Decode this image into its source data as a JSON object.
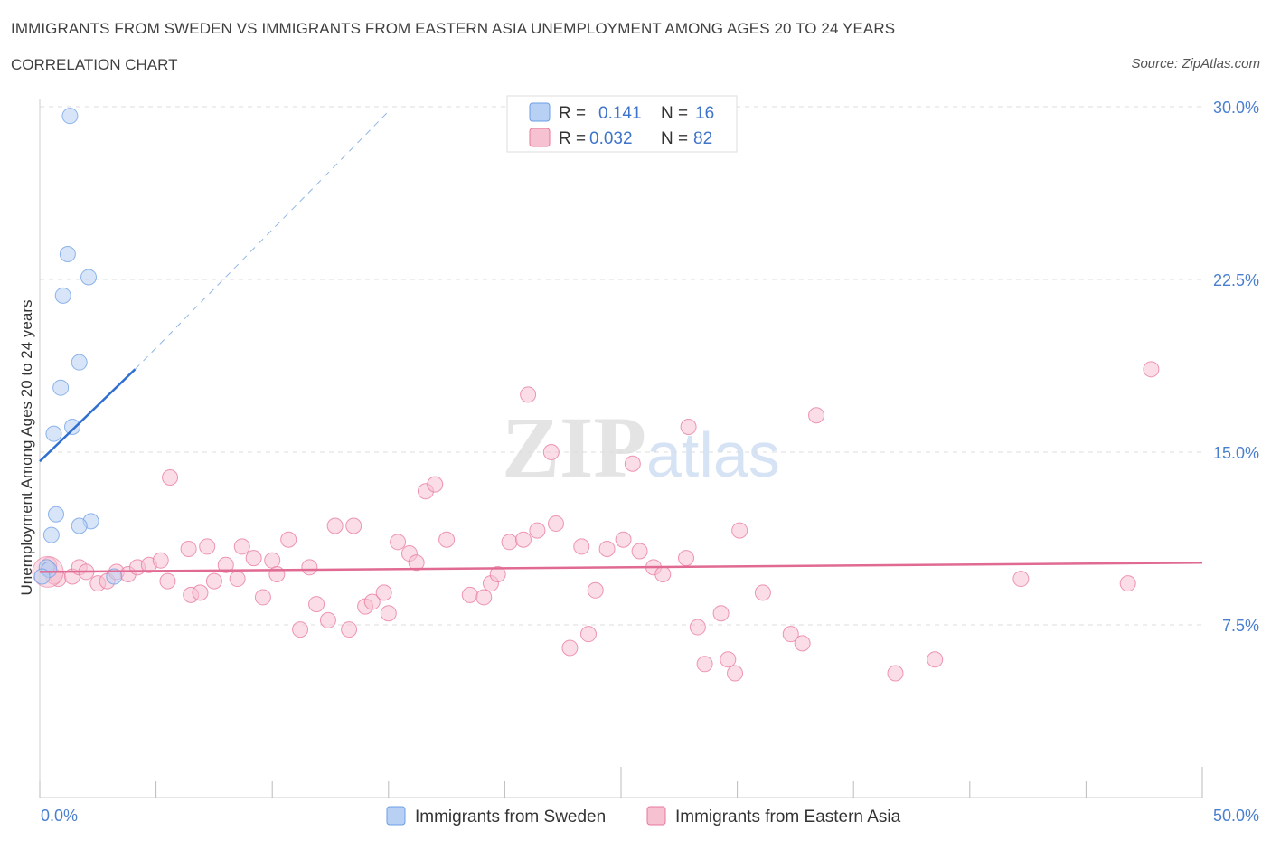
{
  "title": "IMMIGRANTS FROM SWEDEN VS IMMIGRANTS FROM EASTERN ASIA UNEMPLOYMENT AMONG AGES 20 TO 24 YEARS",
  "subtitle": "CORRELATION CHART",
  "source": "Source: ZipAtlas.com",
  "watermark": {
    "zip": "ZIP",
    "atlas": "atlas"
  },
  "colors": {
    "sweden": "#6b9ee6",
    "sweden_fill": "#b8d0f3",
    "eastasia": "#e8779b",
    "eastasia_fill": "#f6c1d1",
    "tick_text": "#4a7fcf",
    "grid": "#dcdcdc"
  },
  "chart_data": {
    "type": "scatter",
    "title": "IMMIGRANTS FROM SWEDEN VS IMMIGRANTS FROM EASTERN ASIA UNEMPLOYMENT AMONG AGES 20 TO 24 YEARS",
    "xlabel": "",
    "ylabel": "Unemployment Among Ages 20 to 24 years",
    "xlim": [
      0,
      50
    ],
    "ylim": [
      0,
      30
    ],
    "x_tick_labels": [
      "0.0%",
      "50.0%"
    ],
    "y_ticks": [
      7.5,
      15.0,
      22.5,
      30.0
    ],
    "y_tick_labels": [
      "7.5%",
      "15.0%",
      "22.5%",
      "30.0%"
    ],
    "legend": [
      {
        "key": "sweden",
        "r_label": "R =",
        "r_value": "0.141",
        "n_label": "N =",
        "n_value": "16"
      },
      {
        "key": "eastasia",
        "r_label": "R =",
        "r_value": "0.032",
        "n_label": "N =",
        "n_value": "82"
      }
    ],
    "series": [
      {
        "key": "sweden",
        "name": "Immigrants from Sweden",
        "trend": {
          "x0": 0.0,
          "y0": 14.6,
          "x1": 4.1,
          "y1": 18.6,
          "dash_x1": 15.0,
          "dash_y1": 29.8
        },
        "points": [
          [
            1.3,
            29.6
          ],
          [
            1.2,
            23.6
          ],
          [
            2.1,
            22.6
          ],
          [
            1.0,
            21.8
          ],
          [
            1.7,
            18.9
          ],
          [
            0.9,
            17.8
          ],
          [
            1.4,
            16.1
          ],
          [
            0.6,
            15.8
          ],
          [
            0.7,
            12.3
          ],
          [
            2.2,
            12.0
          ],
          [
            1.7,
            11.8
          ],
          [
            0.5,
            11.4
          ],
          [
            0.3,
            10.0
          ],
          [
            0.4,
            9.9
          ],
          [
            3.2,
            9.6
          ],
          [
            0.1,
            9.6
          ]
        ]
      },
      {
        "key": "eastasia",
        "name": "Immigrants from Eastern Asia",
        "trend": {
          "x0": 0.0,
          "y0": 9.8,
          "x1": 50.0,
          "y1": 10.2
        },
        "points": [
          [
            0.4,
            10.1
          ],
          [
            0.8,
            9.5
          ],
          [
            1.4,
            9.6
          ],
          [
            1.7,
            10.0
          ],
          [
            2.0,
            9.8
          ],
          [
            2.5,
            9.3
          ],
          [
            2.9,
            9.4
          ],
          [
            3.3,
            9.8
          ],
          [
            3.8,
            9.7
          ],
          [
            4.2,
            10.0
          ],
          [
            4.7,
            10.1
          ],
          [
            5.2,
            10.3
          ],
          [
            5.5,
            9.4
          ],
          [
            5.6,
            13.9
          ],
          [
            6.4,
            10.8
          ],
          [
            6.5,
            8.8
          ],
          [
            6.9,
            8.9
          ],
          [
            7.2,
            10.9
          ],
          [
            7.5,
            9.4
          ],
          [
            8.0,
            10.1
          ],
          [
            8.5,
            9.5
          ],
          [
            8.7,
            10.9
          ],
          [
            9.2,
            10.4
          ],
          [
            9.6,
            8.7
          ],
          [
            10.0,
            10.3
          ],
          [
            10.2,
            9.7
          ],
          [
            10.7,
            11.2
          ],
          [
            11.2,
            7.3
          ],
          [
            11.6,
            10.0
          ],
          [
            11.9,
            8.4
          ],
          [
            12.4,
            7.7
          ],
          [
            12.7,
            11.8
          ],
          [
            13.3,
            7.3
          ],
          [
            13.5,
            11.8
          ],
          [
            14.0,
            8.3
          ],
          [
            14.3,
            8.5
          ],
          [
            14.8,
            8.9
          ],
          [
            15.0,
            8.0
          ],
          [
            15.4,
            11.1
          ],
          [
            15.9,
            10.6
          ],
          [
            16.2,
            10.2
          ],
          [
            16.6,
            13.3
          ],
          [
            17.0,
            13.6
          ],
          [
            17.5,
            11.2
          ],
          [
            18.5,
            8.8
          ],
          [
            19.1,
            8.7
          ],
          [
            19.4,
            9.3
          ],
          [
            19.7,
            9.7
          ],
          [
            20.2,
            11.1
          ],
          [
            20.8,
            11.2
          ],
          [
            21.0,
            17.5
          ],
          [
            21.4,
            11.6
          ],
          [
            22.0,
            15.0
          ],
          [
            22.2,
            11.9
          ],
          [
            22.8,
            6.5
          ],
          [
            23.3,
            10.9
          ],
          [
            23.6,
            7.1
          ],
          [
            23.9,
            9.0
          ],
          [
            24.4,
            10.8
          ],
          [
            25.1,
            11.2
          ],
          [
            25.5,
            14.5
          ],
          [
            25.8,
            10.7
          ],
          [
            26.4,
            10.0
          ],
          [
            26.8,
            9.7
          ],
          [
            27.8,
            10.4
          ],
          [
            27.9,
            16.1
          ],
          [
            28.3,
            7.4
          ],
          [
            28.6,
            5.8
          ],
          [
            29.3,
            8.0
          ],
          [
            29.6,
            6.0
          ],
          [
            29.9,
            5.4
          ],
          [
            30.1,
            11.6
          ],
          [
            31.1,
            8.9
          ],
          [
            32.3,
            7.1
          ],
          [
            32.8,
            6.7
          ],
          [
            33.4,
            16.6
          ],
          [
            36.8,
            5.4
          ],
          [
            38.5,
            6.0
          ],
          [
            42.2,
            9.5
          ],
          [
            46.8,
            9.3
          ],
          [
            47.8,
            18.6
          ],
          [
            0.6,
            9.6
          ]
        ]
      }
    ]
  }
}
